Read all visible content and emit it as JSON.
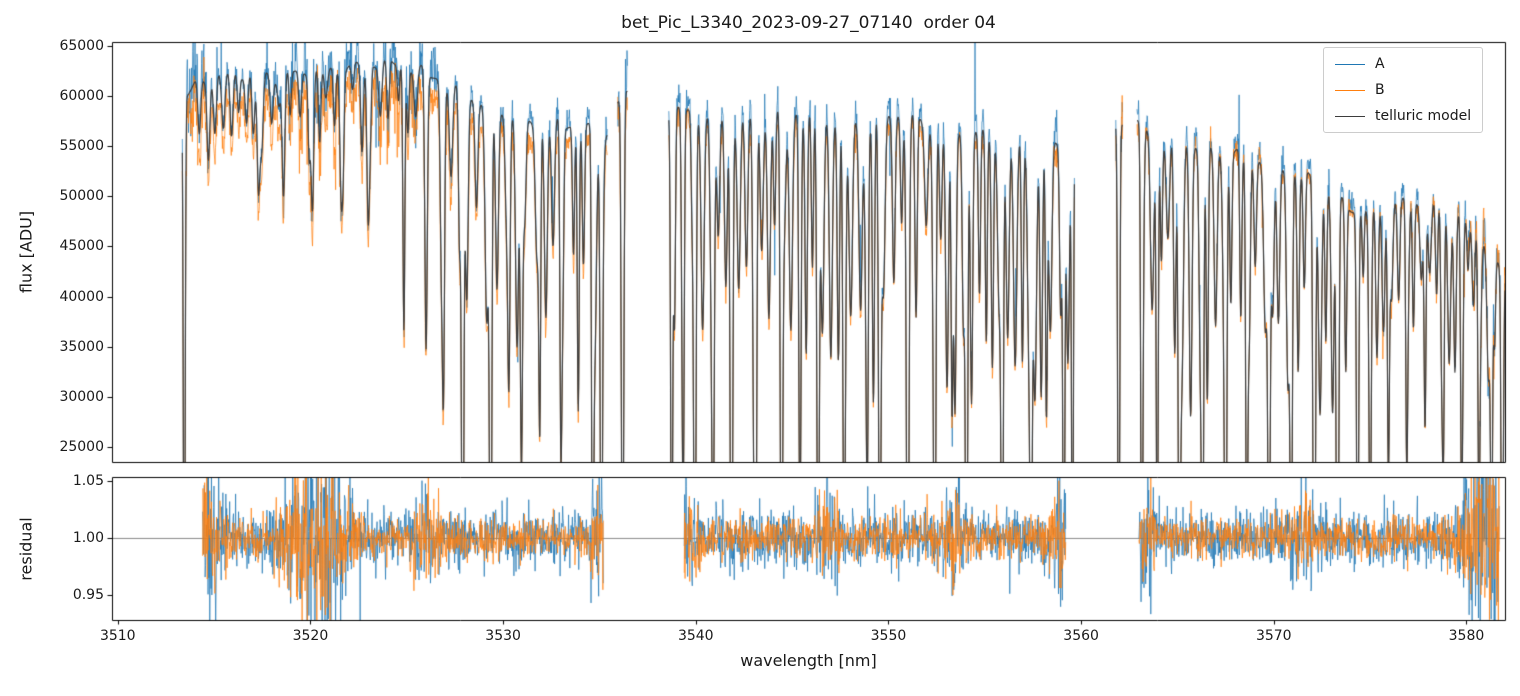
{
  "chart_data": {
    "type": "line",
    "title": "bet_Pic_L3340_2023-09-27_07140  order 04",
    "xlabel": "wavelength [nm]",
    "xlim": [
      3509.7,
      3582.0
    ],
    "xticks": [
      {
        "v": 3510,
        "label": "3510"
      },
      {
        "v": 3520,
        "label": "3520"
      },
      {
        "v": 3530,
        "label": "3530"
      },
      {
        "v": 3540,
        "label": "3540"
      },
      {
        "v": 3550,
        "label": "3550"
      },
      {
        "v": 3560,
        "label": "3560"
      },
      {
        "v": 3570,
        "label": "3570"
      },
      {
        "v": 3580,
        "label": "3580"
      }
    ],
    "panels": [
      {
        "name": "flux",
        "ylabel": "flux [ADU]",
        "ylim": [
          23500,
          65400
        ],
        "yticks": [
          {
            "v": 25000,
            "label": "25000"
          },
          {
            "v": 30000,
            "label": "30000"
          },
          {
            "v": 35000,
            "label": "35000"
          },
          {
            "v": 40000,
            "label": "40000"
          },
          {
            "v": 45000,
            "label": "45000"
          },
          {
            "v": 50000,
            "label": "50000"
          },
          {
            "v": 55000,
            "label": "55000"
          },
          {
            "v": 60000,
            "label": "60000"
          },
          {
            "v": 65000,
            "label": "65000"
          }
        ]
      },
      {
        "name": "residual",
        "ylabel": "residual",
        "ylim": [
          0.928,
          1.0535
        ],
        "axhline": 1.0,
        "yticks": [
          {
            "v": 0.95,
            "label": "0.95"
          },
          {
            "v": 1.0,
            "label": "1.00"
          },
          {
            "v": 1.05,
            "label": "1.05"
          }
        ]
      }
    ],
    "legend": [
      {
        "label": "A",
        "color": "#1f77b4"
      },
      {
        "label": "B",
        "color": "#ff7f0e"
      },
      {
        "label": "telluric model",
        "color": "#3d3d3d"
      }
    ],
    "colors": {
      "A": "#1f77b4",
      "B": "#ff7f0e",
      "model": "#3d3d3d",
      "axhline": "#888888",
      "spine": "#000000",
      "background": "#ffffff"
    },
    "seed": 11,
    "segments": [
      [
        3513.35,
        3535.4
      ],
      [
        3535.95,
        3536.45
      ],
      [
        3538.6,
        3559.65
      ],
      [
        3561.8,
        3562.15
      ],
      [
        3562.9,
        3582.0
      ]
    ],
    "residual_segments": [
      [
        3514.4,
        3535.2
      ],
      [
        3539.4,
        3559.2
      ],
      [
        3563.0,
        3581.7
      ]
    ],
    "continuum_A": [
      [
        3513.35,
        59500
      ],
      [
        3514.2,
        61800
      ],
      [
        3516,
        62600
      ],
      [
        3518,
        62300
      ],
      [
        3520,
        62800
      ],
      [
        3522,
        63200
      ],
      [
        3523.5,
        63700
      ],
      [
        3525,
        63400
      ],
      [
        3526.5,
        62200
      ],
      [
        3528,
        60500
      ],
      [
        3529.5,
        59200
      ],
      [
        3531,
        58400
      ],
      [
        3532.5,
        58100
      ],
      [
        3534,
        57900
      ],
      [
        3535.4,
        57000
      ],
      [
        3536.2,
        61500
      ],
      [
        3538.6,
        59800
      ],
      [
        3540,
        59400
      ],
      [
        3542,
        59100
      ],
      [
        3544,
        59500
      ],
      [
        3546,
        59300
      ],
      [
        3548,
        59000
      ],
      [
        3550,
        59400
      ],
      [
        3551.5,
        58900
      ],
      [
        3553,
        58000
      ],
      [
        3554.5,
        57400
      ],
      [
        3556,
        57200
      ],
      [
        3557.5,
        57000
      ],
      [
        3559.65,
        56300
      ],
      [
        3562,
        58500
      ],
      [
        3562.9,
        58300
      ],
      [
        3564,
        57400
      ],
      [
        3565.5,
        56600
      ],
      [
        3567,
        55800
      ],
      [
        3568.5,
        55100
      ],
      [
        3570,
        54300
      ],
      [
        3571.2,
        53500
      ],
      [
        3572.4,
        52200
      ],
      [
        3573.4,
        50500
      ],
      [
        3574.2,
        49300
      ],
      [
        3575,
        49600
      ],
      [
        3576,
        50100
      ],
      [
        3577,
        50400
      ],
      [
        3578,
        50300
      ],
      [
        3579,
        49700
      ],
      [
        3580,
        48500
      ],
      [
        3580.8,
        46800
      ],
      [
        3581.4,
        44800
      ],
      [
        3582,
        42200
      ]
    ],
    "ratio_B": [
      [
        3513,
        0.96
      ],
      [
        3520,
        0.957
      ],
      [
        3526,
        0.955
      ],
      [
        3535,
        0.96
      ],
      [
        3539,
        0.966
      ],
      [
        3559,
        0.966
      ],
      [
        3563,
        0.974
      ],
      [
        3574,
        0.982
      ],
      [
        3578,
        0.985
      ],
      [
        3582,
        1.0
      ]
    ],
    "ratio_model": [
      [
        3513,
        0.997
      ],
      [
        3526,
        0.995
      ],
      [
        3532,
        0.99
      ],
      [
        3535,
        0.985
      ],
      [
        3539,
        0.982
      ],
      [
        3559,
        0.982
      ],
      [
        3563,
        0.98
      ],
      [
        3572,
        0.982
      ],
      [
        3576,
        0.988
      ],
      [
        3582,
        0.985
      ]
    ],
    "deep_lines": [
      [
        3513.45,
        1.0,
        0.045
      ],
      [
        3517.3,
        0.18,
        0.07
      ],
      [
        3518.6,
        0.2,
        0.07
      ],
      [
        3520.1,
        0.22,
        0.07
      ],
      [
        3521.6,
        0.2,
        0.07
      ],
      [
        3523.0,
        0.25,
        0.07
      ],
      [
        3524.85,
        0.42,
        0.05
      ],
      [
        3526.0,
        0.38,
        0.06
      ],
      [
        3526.9,
        0.5,
        0.06
      ],
      [
        3527.9,
        0.97,
        0.06
      ],
      [
        3529.35,
        0.98,
        0.06
      ],
      [
        3530.3,
        0.45,
        0.06
      ],
      [
        3530.95,
        0.6,
        0.06
      ],
      [
        3531.9,
        0.52,
        0.05
      ],
      [
        3533.0,
        0.55,
        0.05
      ],
      [
        3533.9,
        0.5,
        0.05
      ],
      [
        3534.65,
        0.97,
        0.05
      ],
      [
        3535.1,
        0.92,
        0.05
      ],
      [
        3536.2,
        0.9,
        0.06
      ],
      [
        3538.75,
        0.92,
        0.05
      ],
      [
        3539.35,
        0.55,
        0.05
      ],
      [
        3539.95,
        0.96,
        0.06
      ],
      [
        3540.9,
        0.6,
        0.05
      ],
      [
        3541.85,
        0.96,
        0.06
      ],
      [
        3543.1,
        0.92,
        0.06
      ],
      [
        3544.45,
        0.96,
        0.06
      ],
      [
        3545.4,
        0.5,
        0.05
      ],
      [
        3546.35,
        0.92,
        0.06
      ],
      [
        3547.7,
        0.78,
        0.06
      ],
      [
        3548.9,
        0.5,
        0.05
      ],
      [
        3549.55,
        0.92,
        0.06
      ],
      [
        3551.0,
        0.96,
        0.06
      ],
      [
        3552.4,
        0.92,
        0.06
      ],
      [
        3553.3,
        0.5,
        0.05
      ],
      [
        3554.05,
        0.96,
        0.06
      ],
      [
        3555.9,
        0.96,
        0.06
      ],
      [
        3557.4,
        0.92,
        0.06
      ],
      [
        3558.2,
        0.5,
        0.05
      ],
      [
        3559.1,
        0.96,
        0.05
      ],
      [
        3559.55,
        0.9,
        0.045
      ],
      [
        3561.95,
        0.95,
        0.05
      ],
      [
        3563.15,
        0.92,
        0.05
      ],
      [
        3563.95,
        0.8,
        0.05
      ],
      [
        3565.1,
        0.9,
        0.06
      ],
      [
        3566.3,
        0.86,
        0.06
      ],
      [
        3567.5,
        0.9,
        0.06
      ],
      [
        3568.6,
        0.8,
        0.055
      ],
      [
        3569.75,
        0.9,
        0.06
      ],
      [
        3570.9,
        0.86,
        0.06
      ],
      [
        3572.1,
        0.96,
        0.06
      ],
      [
        3573.3,
        0.96,
        0.06
      ],
      [
        3574.35,
        0.82,
        0.05
      ],
      [
        3575.0,
        0.6,
        0.05
      ],
      [
        3575.95,
        0.55,
        0.05
      ],
      [
        3576.9,
        0.5,
        0.05
      ],
      [
        3577.85,
        0.46,
        0.05
      ],
      [
        3578.8,
        0.5,
        0.05
      ],
      [
        3579.75,
        0.56,
        0.05
      ],
      [
        3580.65,
        0.62,
        0.05
      ],
      [
        3581.3,
        0.72,
        0.05
      ],
      [
        3581.85,
        0.85,
        0.05
      ]
    ],
    "line_comb": [
      {
        "x0": 3514.0,
        "x1": 3526.5,
        "spacing": 0.45,
        "depth": [
          0.04,
          0.14
        ],
        "sigma": [
          0.05,
          0.09
        ]
      },
      {
        "x0": 3526.5,
        "x1": 3535.4,
        "spacing": 0.5,
        "depth": [
          0.15,
          0.4
        ],
        "sigma": [
          0.05,
          0.09
        ]
      },
      {
        "x0": 3538.6,
        "x1": 3559.6,
        "spacing": 0.42,
        "depth": [
          0.15,
          0.5
        ],
        "sigma": [
          0.05,
          0.09
        ]
      },
      {
        "x0": 3562.9,
        "x1": 3574.0,
        "spacing": 0.42,
        "depth": [
          0.18,
          0.5
        ],
        "sigma": [
          0.05,
          0.09
        ]
      },
      {
        "x0": 3574.0,
        "x1": 3582.0,
        "spacing": 0.38,
        "depth": [
          0.1,
          0.35
        ],
        "sigma": [
          0.05,
          0.08
        ]
      }
    ],
    "noise": {
      "A": 0.013,
      "B": 0.011,
      "spike_prob": 0.004,
      "up_spike_prob": 0.0035
    },
    "flux_noise_bursts": [
      {
        "c": 3513.9,
        "w": 0.5,
        "a": 1.8
      },
      {
        "c": 3519.9,
        "w": 1.2,
        "a": 1.6
      },
      {
        "c": 3524.6,
        "w": 1.4,
        "a": 1.4
      },
      {
        "c": 3536.2,
        "w": 0.25,
        "a": 2.0
      },
      {
        "c": 3562.0,
        "w": 0.2,
        "a": 2.0
      },
      {
        "c": 3581.3,
        "w": 0.9,
        "a": 2.4
      }
    ],
    "residual_noise": {
      "A": 0.0105,
      "B": 0.009,
      "spike_prob": 0.005
    },
    "residual_bursts": [
      {
        "c": 3514.8,
        "w": 0.45,
        "a": 2.2
      },
      {
        "c": 3519.9,
        "w": 0.9,
        "a": 3.2
      },
      {
        "c": 3521.3,
        "w": 0.6,
        "a": 2.2
      },
      {
        "c": 3525.9,
        "w": 0.5,
        "a": 1.3
      },
      {
        "c": 3534.9,
        "w": 0.35,
        "a": 1.6
      },
      {
        "c": 3539.6,
        "w": 0.35,
        "a": 1.5
      },
      {
        "c": 3546.9,
        "w": 0.4,
        "a": 1.4
      },
      {
        "c": 3553.5,
        "w": 0.4,
        "a": 1.2
      },
      {
        "c": 3558.9,
        "w": 0.4,
        "a": 1.5
      },
      {
        "c": 3563.3,
        "w": 0.35,
        "a": 1.5
      },
      {
        "c": 3571.5,
        "w": 0.4,
        "a": 1.2
      },
      {
        "c": 3580.2,
        "w": 0.5,
        "a": 2.0
      },
      {
        "c": 3581.3,
        "w": 0.6,
        "a": 4.5
      }
    ]
  }
}
